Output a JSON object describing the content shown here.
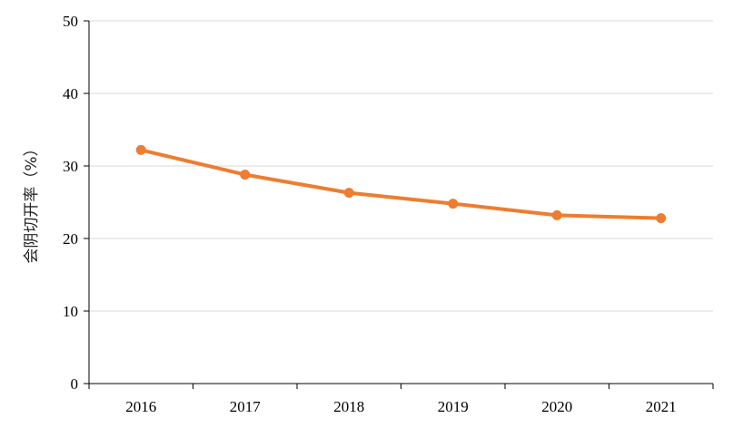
{
  "chart_data": {
    "type": "line",
    "title": "",
    "xlabel": "",
    "ylabel": "会阴切开率（%）",
    "categories": [
      "2016",
      "2017",
      "2018",
      "2019",
      "2020",
      "2021"
    ],
    "series": [
      {
        "values": [
          32.2,
          28.8,
          26.3,
          24.8,
          23.2,
          22.8
        ],
        "color": "#ED7D31"
      }
    ],
    "ylim": [
      0,
      50
    ],
    "yticks": [
      "0",
      "10",
      "20",
      "30",
      "40",
      "50"
    ],
    "grid": true,
    "legend": "none"
  }
}
